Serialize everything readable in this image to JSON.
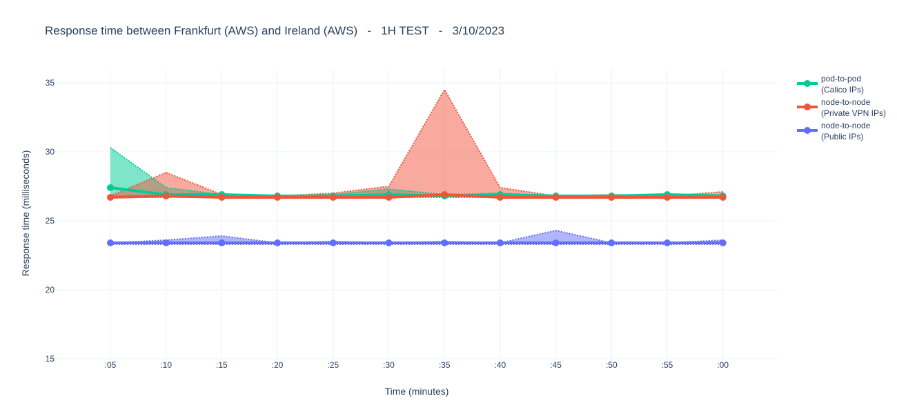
{
  "chart_data": {
    "type": "line",
    "title": "Response time between Frankfurt (AWS) and Ireland (AWS)   -   1H TEST   -   3/10/2023",
    "xlabel": "Time (minutes)",
    "ylabel": "Response time (milliseconds)",
    "categories": [
      ":05",
      ":10",
      ":15",
      ":20",
      ":25",
      ":30",
      ":35",
      ":40",
      ":45",
      ":50",
      ":55",
      ":00"
    ],
    "ylim": [
      15,
      36
    ],
    "yticks": [
      "15",
      "20",
      "25",
      "30",
      "35"
    ],
    "ytick_values": [
      15,
      20,
      25,
      30,
      35
    ],
    "grid": true,
    "legend_position": "top-right outside",
    "series": [
      {
        "name": "pod-to-pod",
        "legend_line1": "pod-to-pod",
        "legend_line2": "(Calico IPs)",
        "color": "#00cc96",
        "fill": "rgba(0,204,150,0.5)",
        "values": [
          27.4,
          26.9,
          26.9,
          26.8,
          26.8,
          26.9,
          26.8,
          26.9,
          26.8,
          26.8,
          26.9,
          26.8
        ],
        "max": [
          30.3,
          27.4,
          26.9,
          26.8,
          26.9,
          27.3,
          26.9,
          27.0,
          26.8,
          26.8,
          26.9,
          26.9
        ],
        "min": [
          26.8,
          26.8,
          26.8,
          26.8,
          26.8,
          26.8,
          26.8,
          26.8,
          26.8,
          26.8,
          26.8,
          26.8
        ]
      },
      {
        "name": "node-to-node (Private VPN IPs)",
        "legend_line1": "node-to-node",
        "legend_line2": "(Private VPN IPs)",
        "color": "#ef553b",
        "fill": "rgba(239,85,59,0.5)",
        "values": [
          26.7,
          26.8,
          26.7,
          26.7,
          26.7,
          26.7,
          26.9,
          26.7,
          26.7,
          26.7,
          26.7,
          26.7
        ],
        "max": [
          26.8,
          28.5,
          26.9,
          26.8,
          27.0,
          27.5,
          34.5,
          27.4,
          26.8,
          26.9,
          26.8,
          27.1
        ],
        "min": [
          26.7,
          26.7,
          26.7,
          26.7,
          26.7,
          26.7,
          26.7,
          26.7,
          26.7,
          26.7,
          26.7,
          26.7
        ]
      },
      {
        "name": "node-to-node (Public IPs)",
        "legend_line1": "node-to-node",
        "legend_line2": "(Public IPs)",
        "color": "#636efa",
        "fill": "rgba(99,110,250,0.5)",
        "values": [
          23.4,
          23.4,
          23.4,
          23.4,
          23.4,
          23.4,
          23.4,
          23.4,
          23.4,
          23.4,
          23.4,
          23.4
        ],
        "max": [
          23.4,
          23.6,
          23.9,
          23.4,
          23.5,
          23.4,
          23.5,
          23.4,
          24.3,
          23.4,
          23.4,
          23.6
        ],
        "min": [
          23.3,
          23.3,
          23.3,
          23.3,
          23.3,
          23.3,
          23.3,
          23.3,
          23.3,
          23.3,
          23.3,
          23.3
        ]
      }
    ]
  }
}
